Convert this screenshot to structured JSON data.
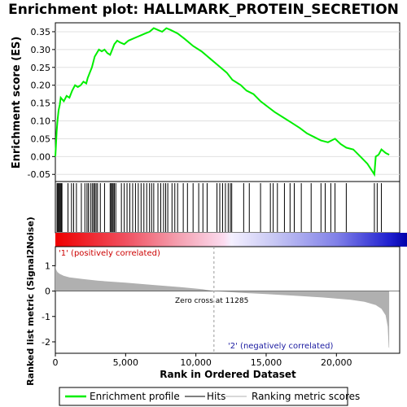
{
  "title": "Enrichment plot: HALLMARK_PROTEIN_SECRETION",
  "colors": {
    "es_line": "#00ee00",
    "hits": "#000000",
    "metric_fill": "#b0b0b0",
    "red": "#ee0000",
    "blue": "#0000cc"
  },
  "chart_data": [
    {
      "type": "line",
      "name": "enrichment-profile",
      "ylabel": "Enrichment score (ES)",
      "ylim": [
        -0.07,
        0.375
      ],
      "xlim": [
        0,
        24500
      ],
      "yticks": [
        -0.05,
        0.0,
        0.05,
        0.1,
        0.15,
        0.2,
        0.25,
        0.3,
        0.35
      ],
      "ytick_labels": [
        "-0.05",
        "0.00",
        "0.05",
        "0.10",
        "0.15",
        "0.20",
        "0.25",
        "0.30",
        "0.35"
      ],
      "points": [
        [
          0,
          0.0
        ],
        [
          40,
          0.03
        ],
        [
          90,
          0.07
        ],
        [
          150,
          0.1
        ],
        [
          230,
          0.13
        ],
        [
          310,
          0.145
        ],
        [
          380,
          0.165
        ],
        [
          600,
          0.155
        ],
        [
          800,
          0.17
        ],
        [
          1000,
          0.165
        ],
        [
          1200,
          0.185
        ],
        [
          1400,
          0.2
        ],
        [
          1600,
          0.195
        ],
        [
          1800,
          0.2
        ],
        [
          2000,
          0.21
        ],
        [
          2200,
          0.205
        ],
        [
          2300,
          0.22
        ],
        [
          2450,
          0.235
        ],
        [
          2600,
          0.25
        ],
        [
          2700,
          0.265
        ],
        [
          2800,
          0.28
        ],
        [
          2950,
          0.29
        ],
        [
          3100,
          0.3
        ],
        [
          3300,
          0.295
        ],
        [
          3500,
          0.3
        ],
        [
          3700,
          0.29
        ],
        [
          3900,
          0.285
        ],
        [
          4050,
          0.3
        ],
        [
          4200,
          0.315
        ],
        [
          4400,
          0.325
        ],
        [
          4600,
          0.32
        ],
        [
          4900,
          0.315
        ],
        [
          5200,
          0.325
        ],
        [
          5500,
          0.33
        ],
        [
          5800,
          0.335
        ],
        [
          6100,
          0.34
        ],
        [
          6400,
          0.345
        ],
        [
          6700,
          0.35
        ],
        [
          7000,
          0.36
        ],
        [
          7300,
          0.355
        ],
        [
          7600,
          0.35
        ],
        [
          7900,
          0.36
        ],
        [
          8200,
          0.355
        ],
        [
          8700,
          0.345
        ],
        [
          9200,
          0.33
        ],
        [
          9800,
          0.31
        ],
        [
          10400,
          0.295
        ],
        [
          11000,
          0.275
        ],
        [
          11600,
          0.255
        ],
        [
          12200,
          0.235
        ],
        [
          12600,
          0.215
        ],
        [
          13200,
          0.2
        ],
        [
          13600,
          0.185
        ],
        [
          14100,
          0.175
        ],
        [
          14600,
          0.155
        ],
        [
          15100,
          0.14
        ],
        [
          15600,
          0.125
        ],
        [
          16200,
          0.11
        ],
        [
          16800,
          0.095
        ],
        [
          17400,
          0.08
        ],
        [
          17900,
          0.065
        ],
        [
          18400,
          0.055
        ],
        [
          18900,
          0.045
        ],
        [
          19400,
          0.04
        ],
        [
          19900,
          0.05
        ],
        [
          20300,
          0.035
        ],
        [
          20700,
          0.025
        ],
        [
          21200,
          0.02
        ],
        [
          21700,
          0.0
        ],
        [
          22200,
          -0.02
        ],
        [
          22700,
          -0.05
        ],
        [
          22800,
          0.0
        ],
        [
          23000,
          0.005
        ],
        [
          23200,
          0.02
        ],
        [
          23500,
          0.01
        ],
        [
          23750,
          0.005
        ]
      ]
    },
    {
      "type": "bar",
      "name": "hits",
      "x": [
        120,
        180,
        240,
        300,
        360,
        420,
        470,
        900,
        1150,
        1300,
        1500,
        1850,
        2100,
        2250,
        2350,
        2500,
        2620,
        2720,
        2800,
        2900,
        3000,
        3200,
        3500,
        3900,
        3980,
        4050,
        4120,
        4200,
        4300,
        4700,
        4900,
        5100,
        5300,
        5500,
        5700,
        5900,
        6100,
        6300,
        6500,
        6700,
        6850,
        7000,
        7300,
        7500,
        7700,
        7850,
        8000,
        8300,
        8500,
        8700,
        9100,
        9400,
        9800,
        10200,
        10500,
        10800,
        11500,
        11700,
        11900,
        12100,
        12300,
        12450,
        12550,
        13400,
        13800,
        14600,
        15300,
        15500,
        15800,
        16300,
        16700,
        17000,
        17500,
        18200,
        18900,
        19200,
        19600,
        19900,
        20700,
        22700,
        22900,
        23200
      ]
    },
    {
      "type": "area",
      "name": "ranked-list-metric",
      "ylabel": "Ranked list metric (Signal2Noise)",
      "xlabel": "Rank in Ordered Dataset",
      "ylim": [
        -2.45,
        1.75
      ],
      "xlim": [
        0,
        24500
      ],
      "yticks": [
        -2,
        -1,
        0,
        1
      ],
      "ytick_labels": [
        "-2",
        "-1",
        "0",
        "1"
      ],
      "xticks": [
        0,
        5000,
        10000,
        15000,
        20000
      ],
      "xtick_labels": [
        "0",
        "5,000",
        "10,000",
        "15,000",
        "20,000"
      ],
      "points": [
        [
          0,
          1.02
        ],
        [
          50,
          0.85
        ],
        [
          150,
          0.75
        ],
        [
          300,
          0.68
        ],
        [
          600,
          0.6
        ],
        [
          1000,
          0.54
        ],
        [
          2000,
          0.47
        ],
        [
          3000,
          0.41
        ],
        [
          5000,
          0.33
        ],
        [
          7000,
          0.24
        ],
        [
          9000,
          0.15
        ],
        [
          10500,
          0.07
        ],
        [
          11285,
          0.0
        ],
        [
          13000,
          -0.06
        ],
        [
          15000,
          -0.12
        ],
        [
          17000,
          -0.18
        ],
        [
          19000,
          -0.25
        ],
        [
          21000,
          -0.34
        ],
        [
          22000,
          -0.42
        ],
        [
          22800,
          -0.55
        ],
        [
          23200,
          -0.7
        ],
        [
          23500,
          -0.95
        ],
        [
          23650,
          -1.4
        ],
        [
          23720,
          -2.2
        ],
        [
          23750,
          -2.25
        ]
      ],
      "zero_cross": 11285
    }
  ],
  "annotations": {
    "positive": "'1' (positively correlated)",
    "negative": "'2' (negatively correlated)",
    "zero_cross": "Zero cross at 11285"
  },
  "legend": {
    "items": [
      {
        "label": "Enrichment profile",
        "color": "#00ee00"
      },
      {
        "label": "Hits",
        "color": "#000000"
      },
      {
        "label": "Ranking metric scores",
        "color": "#b0b0b0"
      }
    ]
  }
}
